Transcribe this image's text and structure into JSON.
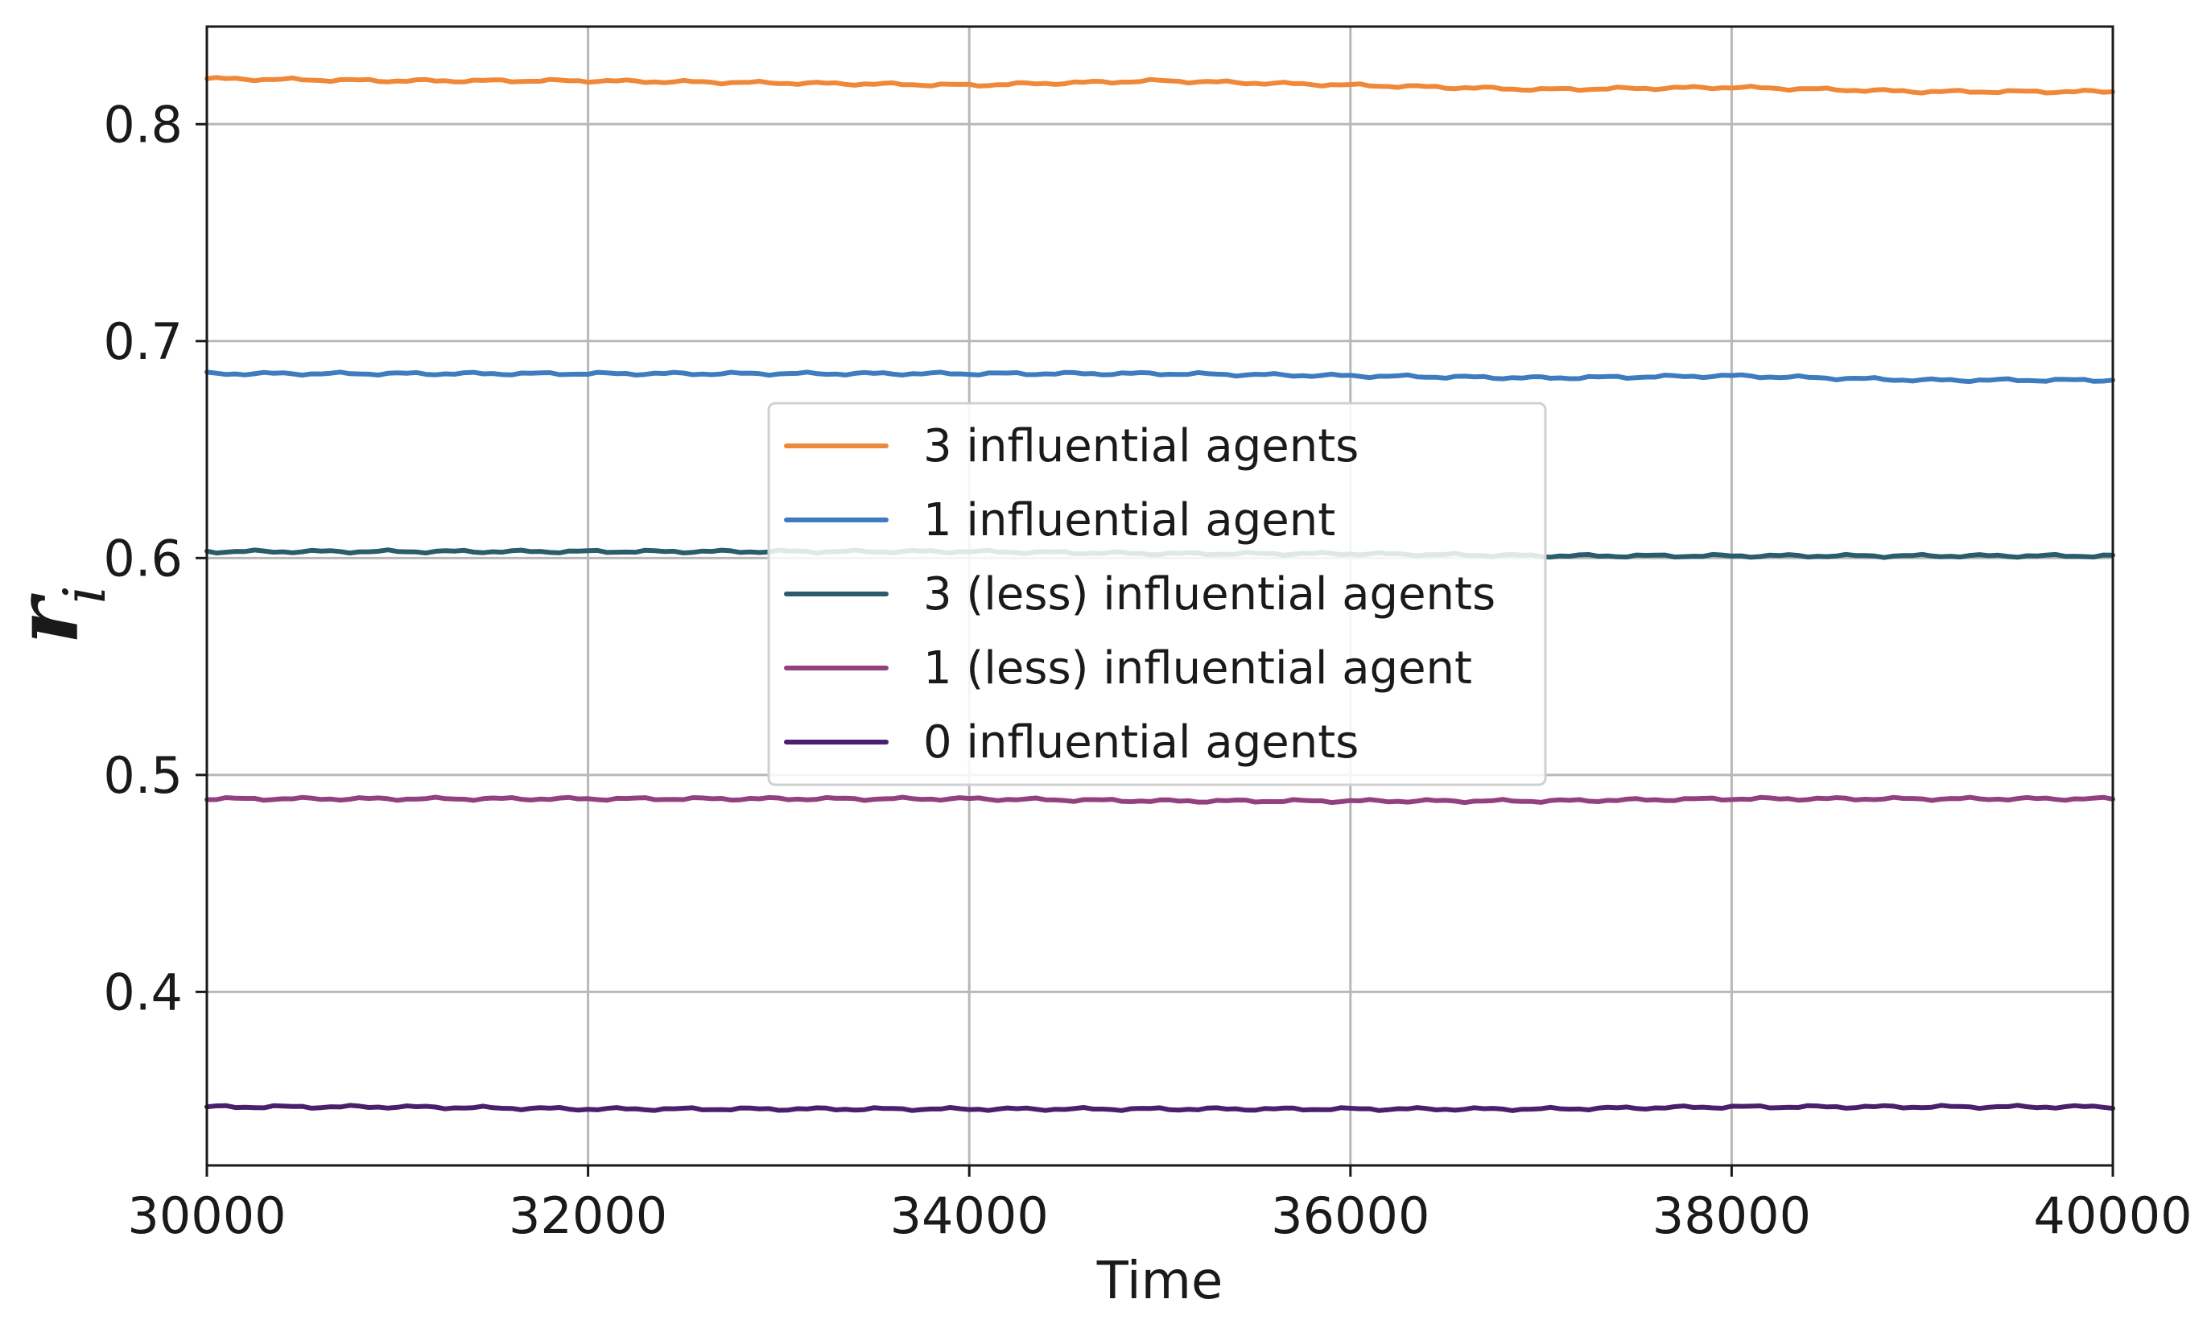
{
  "chart_data": {
    "type": "line",
    "xlabel": "Time",
    "ylabel": "r_i",
    "xlim": [
      30000,
      40000
    ],
    "ylim": [
      0.32,
      0.845
    ],
    "xticks": [
      30000,
      32000,
      34000,
      36000,
      38000,
      40000
    ],
    "yticks": [
      0.4,
      0.5,
      0.6,
      0.7,
      0.8
    ],
    "grid": true,
    "legend_position": "center",
    "x": [
      30000,
      31000,
      32000,
      33000,
      34000,
      35000,
      36000,
      37000,
      38000,
      39000,
      40000
    ],
    "series": [
      {
        "name": "3 influential agents",
        "color": "#f0883a",
        "values": [
          0.821,
          0.82,
          0.82,
          0.819,
          0.818,
          0.82,
          0.818,
          0.816,
          0.817,
          0.815,
          0.815
        ]
      },
      {
        "name": "1 influential agent",
        "color": "#3f7bbf",
        "values": [
          0.685,
          0.685,
          0.685,
          0.685,
          0.685,
          0.685,
          0.684,
          0.683,
          0.684,
          0.682,
          0.682
        ]
      },
      {
        "name": "3 (less) influential agents",
        "color": "#2b5c6b",
        "values": [
          0.603,
          0.603,
          0.603,
          0.603,
          0.603,
          0.602,
          0.602,
          0.601,
          0.601,
          0.601,
          0.601
        ]
      },
      {
        "name": "1 (less) influential agent",
        "color": "#93407f",
        "values": [
          0.489,
          0.489,
          0.489,
          0.489,
          0.489,
          0.488,
          0.488,
          0.488,
          0.489,
          0.489,
          0.489
        ]
      },
      {
        "name": "0 influential agents",
        "color": "#4a1f6b",
        "values": [
          0.347,
          0.347,
          0.346,
          0.346,
          0.346,
          0.346,
          0.346,
          0.346,
          0.347,
          0.347,
          0.347
        ]
      }
    ]
  }
}
